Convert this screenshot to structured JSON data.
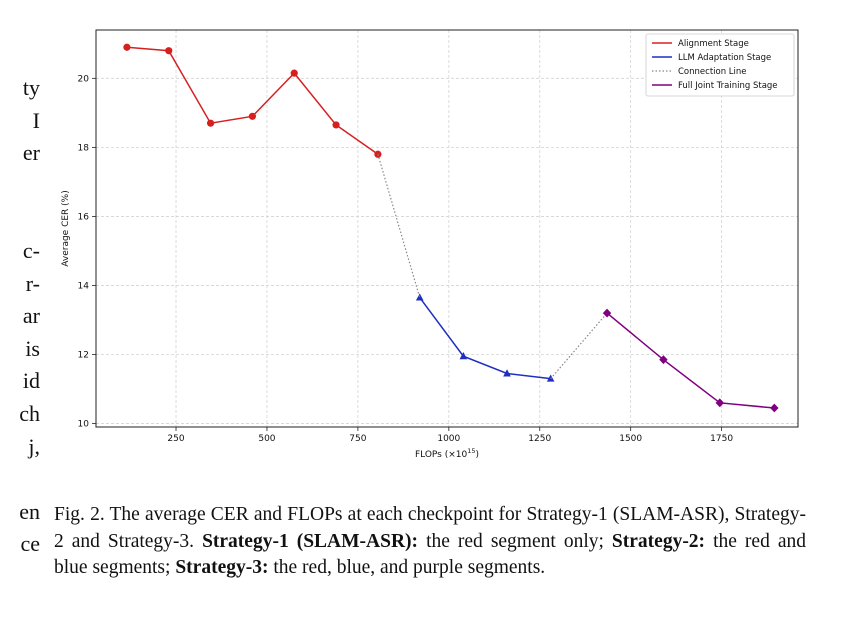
{
  "side_text": {
    "group1": [
      "ty",
      "I",
      "er"
    ],
    "group2": [
      "c-",
      "r-",
      "ar",
      "is",
      "id",
      "ch",
      "j,"
    ],
    "group3": [
      "en",
      "ce"
    ]
  },
  "chart_data": {
    "type": "line",
    "xlabel": "FLOPs (×10",
    "xlabel_sup": "15",
    "xlabel_end": ")",
    "ylabel": "Average CER (%)",
    "xlim": [
      30,
      1960
    ],
    "ylim": [
      9.9,
      21.4
    ],
    "x_ticks": [
      250,
      500,
      750,
      1000,
      1250,
      1500,
      1750
    ],
    "y_ticks": [
      10,
      12,
      14,
      16,
      18,
      20
    ],
    "grid": true,
    "legend_position": "top-right",
    "series": [
      {
        "name": "Alignment Stage",
        "color": "#d62020",
        "style": "solid",
        "marker": "circle",
        "x": [
          115,
          230,
          345,
          460,
          575,
          690,
          805
        ],
        "y": [
          20.9,
          20.8,
          18.7,
          18.9,
          20.15,
          18.65,
          17.8
        ]
      },
      {
        "name": "LLM Adaptation Stage",
        "color": "#1f2fc0",
        "style": "solid",
        "marker": "triangle",
        "x": [
          920,
          1040,
          1160,
          1280
        ],
        "y": [
          13.65,
          11.95,
          11.45,
          11.3
        ]
      },
      {
        "name": "Connection Line",
        "color": "#888888",
        "style": "dotted",
        "marker": "none",
        "segments": [
          {
            "x": [
              805,
              920
            ],
            "y": [
              17.8,
              13.65
            ]
          },
          {
            "x": [
              1280,
              1435
            ],
            "y": [
              11.3,
              13.2
            ]
          }
        ]
      },
      {
        "name": "Full Joint Training Stage",
        "color": "#800080",
        "style": "solid",
        "marker": "diamond",
        "x": [
          1435,
          1590,
          1745,
          1895
        ],
        "y": [
          13.2,
          11.85,
          10.6,
          10.45
        ]
      }
    ]
  },
  "caption": {
    "prefix": "Fig. 2.  The average CER and FLOPs at each checkpoint for Strategy-1 (SLAM-ASR), Strategy-2 and Strategy-3. ",
    "s1_label": "Strategy-1 (SLAM-ASR):",
    "s1_text": " the red segment only; ",
    "s2_label": "Strategy-2:",
    "s2_text": " the red and blue segments; ",
    "s3_label": "Strategy-3:",
    "s3_text": " the red, blue, and purple segments."
  }
}
